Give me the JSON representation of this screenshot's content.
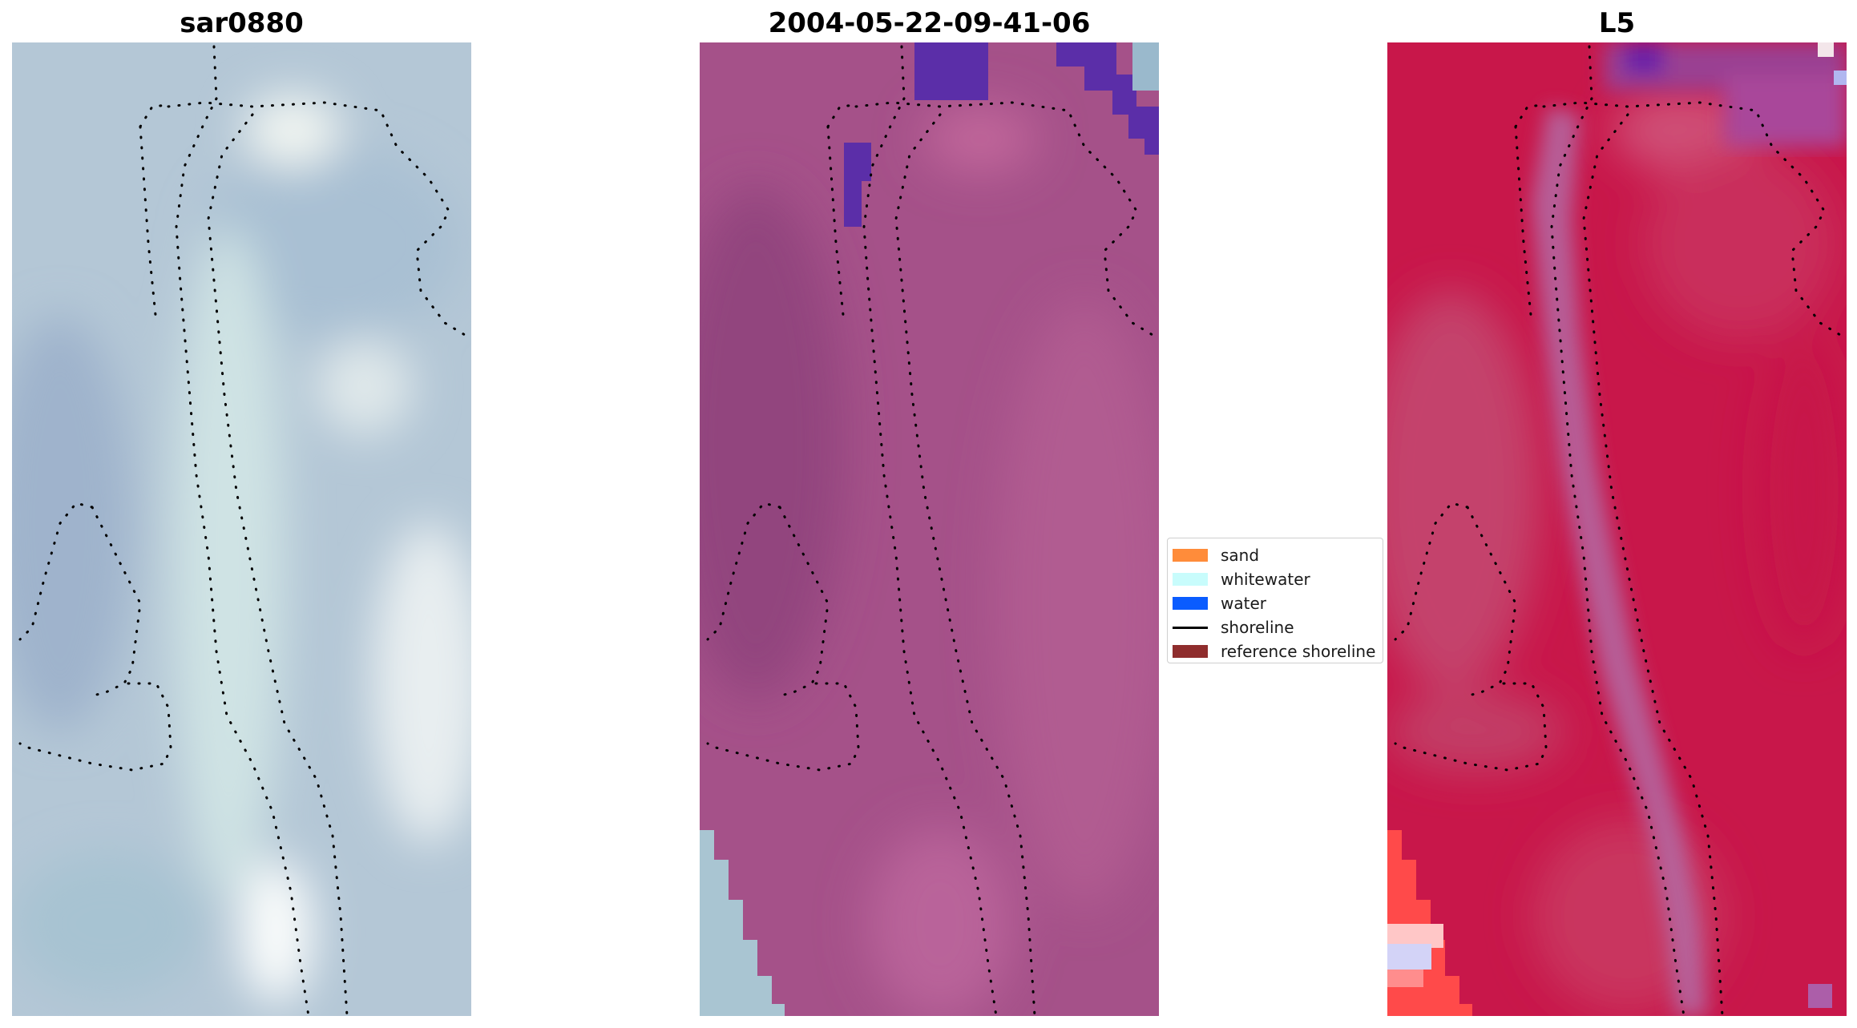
{
  "panels": [
    {
      "title": "sar0880"
    },
    {
      "title": "2004-05-22-09-41-06"
    },
    {
      "title": "L5"
    }
  ],
  "legend": {
    "items": [
      {
        "label": "sand",
        "kind": "patch",
        "color": "#ff8c3a"
      },
      {
        "label": "whitewater",
        "kind": "patch",
        "color": "#c8fcfc"
      },
      {
        "label": "water",
        "kind": "patch",
        "color": "#0a5cff"
      },
      {
        "label": "shoreline",
        "kind": "line",
        "color": "#000000"
      },
      {
        "label": "reference shoreline",
        "kind": "patch",
        "color": "#8f2d2d"
      }
    ]
  },
  "colors": {
    "rgb_base": "#b4c7d6",
    "classified_base": "#a55189",
    "classified_water": "#5b2ea8",
    "index_base": "#c8174a",
    "index_high": "#ff3b3b",
    "index_low": "#8f6cc8"
  }
}
